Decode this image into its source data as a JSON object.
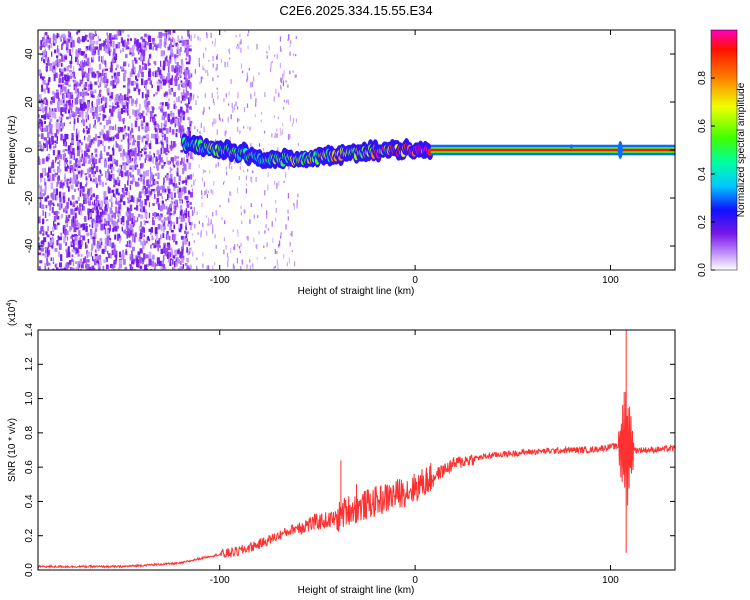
{
  "title": "C2E6.2025.334.15.55.E34",
  "chart_data": [
    {
      "type": "heatmap",
      "title": "C2E6.2025.334.15.55.E34",
      "xlabel": "Height of straight line (km)",
      "ylabel": "Frequency (Hz)",
      "xlim": [
        -193,
        133
      ],
      "ylim": [
        -50,
        50
      ],
      "xticks": [
        -100,
        0,
        100
      ],
      "xtick_labels": [
        "-100",
        "0",
        "100"
      ],
      "yticks": [
        -40,
        -20,
        0,
        20,
        40
      ],
      "ytick_labels": [
        "-40",
        "-20",
        "0",
        "20",
        "40"
      ],
      "colorbar": {
        "label": "Normalized spectral amplitude",
        "range": [
          0.0,
          1.0
        ],
        "ticks": [
          0.0,
          0.2,
          0.4,
          0.6,
          0.8
        ],
        "tick_labels": [
          "0.0",
          "0.2",
          "0.4",
          "0.6",
          "0.8"
        ]
      },
      "noise_region_km": [
        -193,
        -115
      ],
      "sparse_noise_region_km": [
        -115,
        -60
      ],
      "signal_track": {
        "x": [
          -118,
          -110,
          -100,
          -90,
          -80,
          -70,
          -60,
          -50,
          -40,
          -30,
          -20,
          -10,
          0,
          5,
          10,
          133
        ],
        "freq_hz": [
          3,
          1,
          0,
          -1,
          -3,
          -4,
          -4,
          -3,
          -2,
          -1,
          -0.5,
          0,
          0,
          0,
          0,
          0
        ],
        "amplitude": [
          0.45,
          0.5,
          0.5,
          0.45,
          0.45,
          0.5,
          0.55,
          0.6,
          0.65,
          0.7,
          0.75,
          0.8,
          0.85,
          0.9,
          0.97,
          0.97
        ]
      }
    },
    {
      "type": "line",
      "xlabel": "Height of straight line (km)",
      "ylabel": "SNR (10 * v/v)",
      "scale_label": "(x10",
      "scale_exponent": "4",
      "scale_suffix": ")",
      "xlim": [
        -193,
        133
      ],
      "ylim": [
        0,
        1.4
      ],
      "xticks": [
        -100,
        0,
        100
      ],
      "xtick_labels": [
        "-100",
        "0",
        "100"
      ],
      "yticks": [
        0.0,
        0.2,
        0.4,
        0.6,
        0.8,
        1.0,
        1.2,
        1.4
      ],
      "ytick_labels": [
        "0.0",
        "0.2",
        "0.4",
        "0.6",
        "0.8",
        "1.0",
        "1.2",
        "1.4"
      ],
      "series": [
        {
          "name": "SNR",
          "color": "#ff3030",
          "x": [
            -193,
            -150,
            -120,
            -105,
            -100,
            -90,
            -80,
            -70,
            -60,
            -50,
            -40,
            -35,
            -30,
            -20,
            -10,
            0,
            10,
            20,
            30,
            40,
            60,
            80,
            90,
            95,
            100,
            105,
            108,
            110,
            120,
            133
          ],
          "y": [
            0.02,
            0.02,
            0.04,
            0.08,
            0.09,
            0.11,
            0.15,
            0.2,
            0.25,
            0.28,
            0.3,
            0.35,
            0.36,
            0.4,
            0.44,
            0.48,
            0.55,
            0.62,
            0.65,
            0.67,
            0.69,
            0.7,
            0.7,
            0.71,
            0.72,
            0.72,
            0.72,
            0.7,
            0.7,
            0.71
          ]
        }
      ],
      "annotations": [
        {
          "x": -38,
          "y": 0.64,
          "note": "spike"
        },
        {
          "x": -30,
          "y": 0.5,
          "note": "spike"
        },
        {
          "x": 108,
          "y": 1.4,
          "note": "peak"
        },
        {
          "x": 108,
          "y": 0.1,
          "note": "dip"
        }
      ]
    }
  ]
}
